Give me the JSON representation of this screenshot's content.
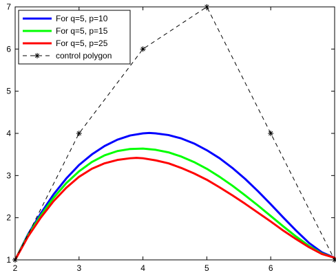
{
  "chart_data": {
    "type": "line",
    "title": "",
    "xlabel": "",
    "ylabel": "",
    "xlim": [
      2,
      7
    ],
    "ylim": [
      1,
      7
    ],
    "x_ticks": [
      2,
      3,
      4,
      5,
      6
    ],
    "y_ticks": [
      1,
      2,
      3,
      4,
      5,
      6,
      7
    ],
    "grid": false,
    "legend_position": "top-left",
    "series": [
      {
        "name": "For q=5, p=10",
        "color": "#0000ff",
        "style": "solid",
        "x": [
          2.0,
          2.2,
          2.4,
          2.6,
          2.8,
          3.0,
          3.2,
          3.4,
          3.6,
          3.8,
          4.0,
          4.1,
          4.2,
          4.4,
          4.6,
          4.8,
          5.0,
          5.2,
          5.4,
          5.6,
          5.8,
          6.0,
          6.2,
          6.4,
          6.6,
          6.8,
          7.0
        ],
        "y": [
          1.0,
          1.6,
          2.1,
          2.55,
          2.93,
          3.25,
          3.5,
          3.7,
          3.85,
          3.95,
          4.0,
          4.01,
          4.0,
          3.96,
          3.88,
          3.76,
          3.6,
          3.41,
          3.18,
          2.92,
          2.63,
          2.32,
          2.0,
          1.69,
          1.4,
          1.18,
          1.05
        ]
      },
      {
        "name": "For q=5, p=15",
        "color": "#00ff00",
        "style": "solid",
        "x": [
          2.0,
          2.2,
          2.4,
          2.6,
          2.8,
          3.0,
          3.2,
          3.4,
          3.6,
          3.8,
          4.0,
          4.2,
          4.4,
          4.6,
          4.8,
          5.0,
          5.2,
          5.4,
          5.6,
          5.8,
          6.0,
          6.2,
          6.4,
          6.6,
          6.8,
          7.0
        ],
        "y": [
          1.0,
          1.58,
          2.05,
          2.47,
          2.82,
          3.1,
          3.32,
          3.48,
          3.58,
          3.63,
          3.64,
          3.61,
          3.55,
          3.45,
          3.32,
          3.16,
          2.97,
          2.76,
          2.53,
          2.29,
          2.04,
          1.79,
          1.55,
          1.33,
          1.15,
          1.05
        ]
      },
      {
        "name": "For q=5, p=25",
        "color": "#ff0000",
        "style": "solid",
        "x": [
          2.0,
          2.2,
          2.4,
          2.6,
          2.8,
          3.0,
          3.2,
          3.4,
          3.6,
          3.8,
          3.9,
          4.0,
          4.2,
          4.4,
          4.6,
          4.8,
          5.0,
          5.2,
          5.4,
          5.6,
          5.8,
          6.0,
          6.2,
          6.4,
          6.6,
          6.8,
          7.0
        ],
        "y": [
          1.0,
          1.55,
          2.0,
          2.39,
          2.71,
          2.97,
          3.16,
          3.29,
          3.37,
          3.41,
          3.42,
          3.41,
          3.36,
          3.29,
          3.18,
          3.05,
          2.9,
          2.72,
          2.53,
          2.33,
          2.12,
          1.91,
          1.69,
          1.49,
          1.3,
          1.14,
          1.05
        ]
      },
      {
        "name": "control polygon",
        "color": "#000000",
        "style": "dashed-star",
        "x": [
          2,
          3,
          4,
          5,
          6,
          7
        ],
        "y": [
          1,
          4,
          6,
          7,
          4,
          1
        ]
      }
    ]
  }
}
